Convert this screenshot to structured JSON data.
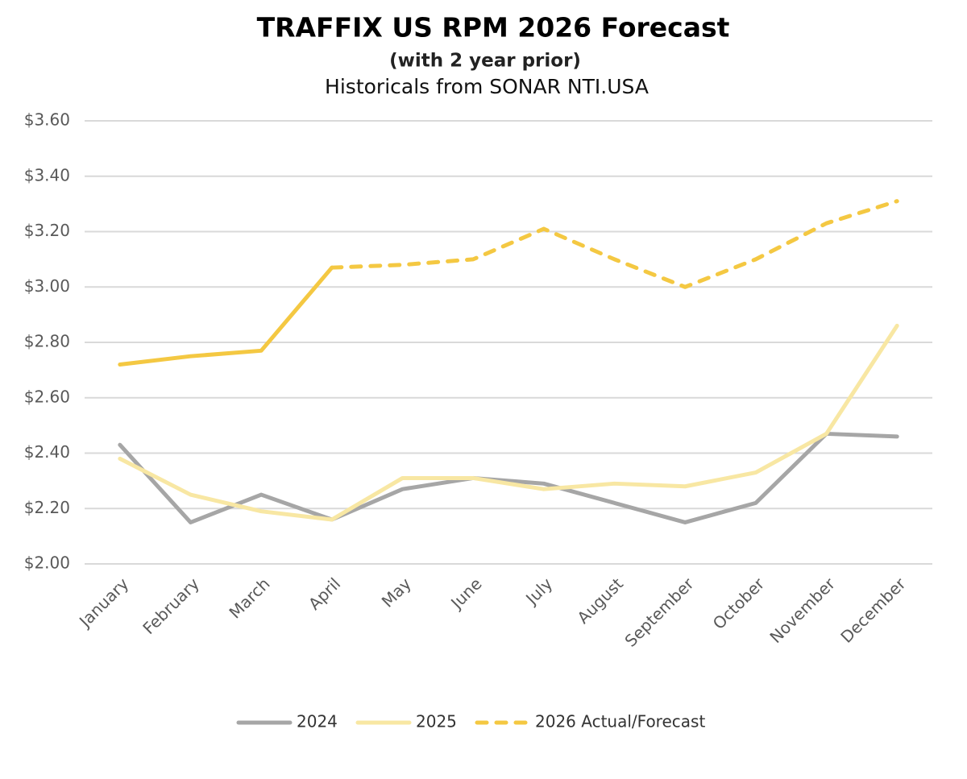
{
  "chart_data": {
    "type": "line",
    "title": "TRAFFIX US RPM 2026 Forecast",
    "subtitle": "(with 2 year prior)",
    "subtitle2": "Historicals from SONAR NTI.USA",
    "categories": [
      "January",
      "February",
      "March",
      "April",
      "May",
      "June",
      "July",
      "August",
      "September",
      "October",
      "November",
      "December"
    ],
    "series": [
      {
        "name": "2024",
        "color": "#a6a6a6",
        "values": [
          2.43,
          2.15,
          2.25,
          2.16,
          2.27,
          2.31,
          2.29,
          2.22,
          2.15,
          2.22,
          2.47,
          2.46
        ]
      },
      {
        "name": "2025",
        "color": "#f8e7a3",
        "values": [
          2.38,
          2.25,
          2.19,
          2.16,
          2.31,
          2.31,
          2.27,
          2.29,
          2.28,
          2.33,
          2.47,
          2.86
        ]
      },
      {
        "name": "2026 Actual/Forecast",
        "color": "#f4c842",
        "legend_dashed": true,
        "dashed": [
          false,
          false,
          false,
          false,
          true,
          true,
          true,
          true,
          true,
          true,
          true,
          true
        ],
        "values": [
          2.72,
          2.75,
          2.77,
          3.07,
          3.08,
          3.1,
          3.21,
          3.1,
          3.0,
          3.1,
          3.23,
          3.31
        ]
      }
    ],
    "ylim": [
      2.0,
      3.6
    ],
    "yticks": [
      {
        "value": 2.0,
        "label": "$2.00"
      },
      {
        "value": 2.2,
        "label": "$2.20"
      },
      {
        "value": 2.4,
        "label": "$2.40"
      },
      {
        "value": 2.6,
        "label": "$2.60"
      },
      {
        "value": 2.8,
        "label": "$2.80"
      },
      {
        "value": 3.0,
        "label": "$3.00"
      },
      {
        "value": 3.2,
        "label": "$3.20"
      },
      {
        "value": 3.4,
        "label": "$3.40"
      },
      {
        "value": 3.6,
        "label": "$3.60"
      }
    ],
    "grid": true,
    "legend": "bottom"
  }
}
